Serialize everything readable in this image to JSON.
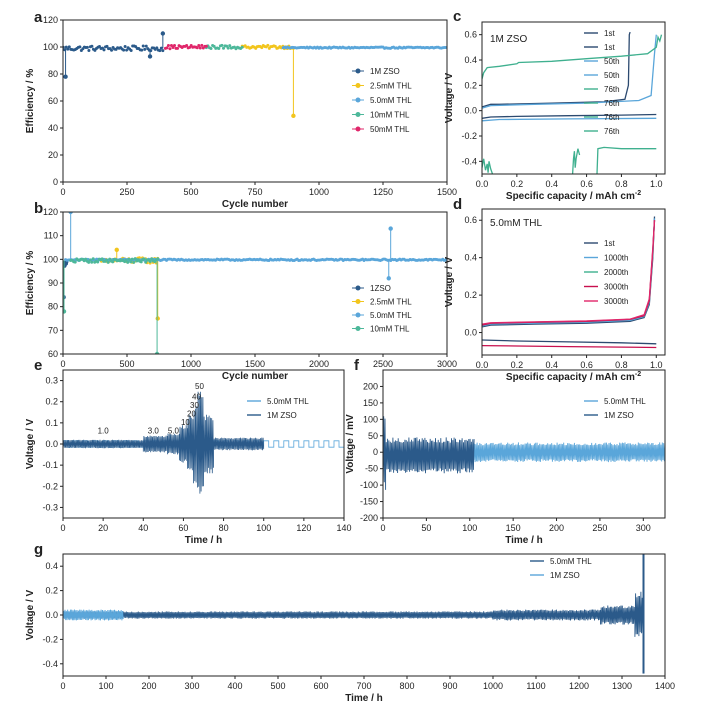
{
  "chart_data": [
    {
      "id": "a",
      "panel_label": "a",
      "type": "scatter",
      "xlabel": "Cycle number",
      "ylabel": "Efficiency / %",
      "xlim": [
        0,
        1500
      ],
      "ylim": [
        0,
        120
      ],
      "xticks": [
        0,
        250,
        500,
        750,
        1000,
        1250,
        1500
      ],
      "yticks": [
        0,
        20,
        40,
        60,
        80,
        100,
        120
      ],
      "legend": "right",
      "series": [
        {
          "name": "1M ZSO",
          "color": "#2b5a8a",
          "x_range": [
            1,
            390
          ],
          "base": 99,
          "noise": 1.8,
          "spikes": [
            [
              10,
              78
            ],
            [
              390,
              110
            ],
            [
              340,
              93
            ]
          ]
        },
        {
          "name": "2.5mM THL",
          "color": "#f2c51d",
          "x_range": [
            700,
            900
          ],
          "base": 100,
          "noise": 1.2,
          "spikes": [
            [
              900,
              49
            ]
          ]
        },
        {
          "name": "5.0mM THL",
          "color": "#5aa6da",
          "x_range": [
            860,
            1495
          ],
          "base": 99.5,
          "noise": 0.5,
          "spikes": []
        },
        {
          "name": "10mM THL",
          "color": "#4db89a",
          "x_range": [
            560,
            700
          ],
          "base": 100,
          "noise": 1.3,
          "spikes": []
        },
        {
          "name": "50mM THL",
          "color": "#e0266a",
          "x_range": [
            400,
            560
          ],
          "base": 100,
          "noise": 1.3,
          "spikes": []
        }
      ]
    },
    {
      "id": "b",
      "panel_label": "b",
      "type": "scatter",
      "xlabel": "Cycle number",
      "ylabel": "Efficiency / %",
      "xlim": [
        0,
        3000
      ],
      "ylim": [
        60,
        120
      ],
      "xticks": [
        0,
        500,
        1000,
        1500,
        2000,
        2500,
        3000
      ],
      "yticks": [
        60,
        70,
        80,
        90,
        100,
        110,
        120
      ],
      "legend": "right",
      "series": [
        {
          "name": "1ZSO",
          "color": "#2b5a8a",
          "x_range": [
            1,
            30
          ],
          "base": 98,
          "noise": 1,
          "spikes": [
            [
              5,
              84
            ]
          ]
        },
        {
          "name": "2.5mM THL",
          "color": "#f2c51d",
          "x_range": [
            300,
            740
          ],
          "base": 99.5,
          "noise": 1.2,
          "spikes": [
            [
              740,
              75
            ],
            [
              420,
              104
            ]
          ]
        },
        {
          "name": "5.0mM THL",
          "color": "#5aa6da",
          "x_range": [
            20,
            2990
          ],
          "base": 99.8,
          "noise": 0.3,
          "spikes": [
            [
              2560,
              113
            ],
            [
              2545,
              92
            ],
            [
              60,
              120
            ]
          ]
        },
        {
          "name": "10mM THL",
          "color": "#4db89a",
          "x_range": [
            60,
            740
          ],
          "base": 99.5,
          "noise": 0.8,
          "spikes": [
            [
              8,
              78
            ],
            [
              735,
              60
            ]
          ]
        }
      ]
    },
    {
      "id": "c",
      "panel_label": "c",
      "type": "line",
      "inset_text": "1M ZSO",
      "xlabel": "Specific capacity / mAh cm",
      "xlabel_sup": "-2",
      "ylabel": "Voltage / V",
      "xlim": [
        0,
        1.05
      ],
      "ylim": [
        -0.5,
        0.7
      ],
      "xticks": [
        0.0,
        0.2,
        0.4,
        0.6,
        0.8,
        1.0
      ],
      "yticks": [
        -0.4,
        -0.2,
        0.0,
        0.2,
        0.4,
        0.6
      ],
      "legend": "top-right",
      "series": [
        {
          "name": "1st",
          "color": "#2c4a70",
          "x": [
            0,
            0.05,
            0.1,
            0.4,
            0.7,
            0.82,
            0.84,
            0.845,
            0.85
          ],
          "y": [
            0.03,
            0.05,
            0.05,
            0.06,
            0.07,
            0.09,
            0.2,
            0.6,
            0.62
          ]
        },
        {
          "name": "1st",
          "color": "#2c4a70",
          "x": [
            0,
            0.05,
            0.2,
            0.5,
            0.8,
            1.0
          ],
          "y": [
            -0.06,
            -0.05,
            -0.045,
            -0.04,
            -0.035,
            -0.03
          ]
        },
        {
          "name": "50th",
          "color": "#5aa6da",
          "x": [
            0,
            0.05,
            0.3,
            0.6,
            0.9,
            0.97,
            0.99,
            1.0
          ],
          "y": [
            0.02,
            0.04,
            0.05,
            0.06,
            0.08,
            0.12,
            0.45,
            0.6
          ]
        },
        {
          "name": "50th",
          "color": "#5aa6da",
          "x": [
            0,
            0.1,
            0.5,
            1.0
          ],
          "y": [
            -0.08,
            -0.07,
            -0.065,
            -0.06
          ]
        },
        {
          "name": "76th",
          "color": "#3fb08f",
          "x": [
            0,
            0.01,
            0.03,
            0.1,
            0.2,
            0.21,
            0.4,
            0.6,
            0.8,
            0.95,
            1.0,
            1.01,
            1.02,
            1.03
          ],
          "y": [
            0.25,
            0.3,
            0.34,
            0.35,
            0.37,
            0.38,
            0.39,
            0.41,
            0.43,
            0.45,
            0.5,
            0.58,
            0.55,
            0.6
          ]
        },
        {
          "name": "76th",
          "color": "#3fb08f",
          "x": [
            0.0,
            0.01,
            0.02,
            0.03,
            0.035,
            0.04,
            0.05,
            0.06
          ],
          "y": [
            -0.45,
            -0.38,
            -0.47,
            -0.42,
            -0.49,
            -0.4,
            -0.46,
            -0.5
          ]
        },
        {
          "name": "76th",
          "color": "#3fb08f",
          "x": [
            0.52,
            0.525,
            0.53,
            0.535,
            0.54,
            0.55,
            0.56
          ],
          "y": [
            -0.5,
            -0.38,
            -0.32,
            -0.45,
            -0.38,
            -0.3,
            -0.35
          ]
        },
        {
          "name": "76th",
          "color": "#3fb08f",
          "x": [
            0.66,
            0.665,
            0.7,
            0.8,
            0.9,
            1.0
          ],
          "y": [
            -0.5,
            -0.3,
            -0.29,
            -0.3,
            -0.3,
            -0.3
          ]
        }
      ]
    },
    {
      "id": "d",
      "panel_label": "d",
      "type": "line",
      "inset_text": "5.0mM THL",
      "xlabel": "Specific capacity / mAh cm",
      "xlabel_sup": "-2",
      "ylabel": "Voltage / V",
      "xlim": [
        0,
        1.05
      ],
      "ylim": [
        -0.12,
        0.66
      ],
      "xticks": [
        0.0,
        0.2,
        0.4,
        0.6,
        0.8,
        1.0
      ],
      "yticks": [
        0.0,
        0.2,
        0.4,
        0.6
      ],
      "legend": "top-right",
      "series": [
        {
          "name": "1st",
          "color": "#2c4a70",
          "x": [
            0,
            0.05,
            0.3,
            0.6,
            0.85,
            0.93,
            0.96,
            0.98,
            0.99
          ],
          "y": [
            0.03,
            0.04,
            0.045,
            0.05,
            0.06,
            0.08,
            0.15,
            0.4,
            0.62
          ]
        },
        {
          "name": "1000th",
          "color": "#5aa6da",
          "x": [
            0,
            0.05,
            0.3,
            0.6,
            0.85,
            0.93,
            0.96,
            0.98,
            0.99
          ],
          "y": [
            0.035,
            0.045,
            0.05,
            0.055,
            0.065,
            0.085,
            0.16,
            0.42,
            0.61
          ]
        },
        {
          "name": "2000th",
          "color": "#3fb08f",
          "x": [
            0,
            0.05,
            0.3,
            0.6,
            0.85,
            0.93,
            0.96,
            0.98,
            0.99
          ],
          "y": [
            0.04,
            0.05,
            0.055,
            0.06,
            0.07,
            0.09,
            0.17,
            0.43,
            0.6
          ]
        },
        {
          "name": "3000th",
          "color": "#c8104e",
          "x": [
            0,
            0.05,
            0.3,
            0.6,
            0.85,
            0.93,
            0.96,
            0.98,
            0.99
          ],
          "y": [
            0.04,
            0.05,
            0.055,
            0.06,
            0.07,
            0.09,
            0.17,
            0.44,
            0.6
          ]
        },
        {
          "name": "3000th",
          "color": "#e0266a",
          "x": [
            0,
            0.05,
            0.3,
            0.6,
            0.85,
            0.93,
            0.96,
            0.98,
            0.99
          ],
          "y": [
            0.045,
            0.052,
            0.057,
            0.062,
            0.072,
            0.095,
            0.18,
            0.45,
            0.6
          ]
        },
        {
          "name": "",
          "color": "#2c4a70",
          "x": [
            0,
            0.2,
            0.5,
            0.8,
            1.0
          ],
          "y": [
            -0.04,
            -0.045,
            -0.05,
            -0.055,
            -0.06
          ]
        },
        {
          "name": "",
          "color": "#c8104e",
          "x": [
            0,
            0.2,
            0.5,
            0.8,
            1.0
          ],
          "y": [
            -0.07,
            -0.072,
            -0.075,
            -0.078,
            -0.08
          ]
        }
      ]
    },
    {
      "id": "e",
      "panel_label": "e",
      "type": "line",
      "xlabel": "Time / h",
      "ylabel": "Voltage / V",
      "xlim": [
        0,
        140
      ],
      "ylim": [
        -0.35,
        0.35
      ],
      "xticks": [
        0,
        20,
        40,
        60,
        80,
        100,
        120,
        140
      ],
      "yticks": [
        -0.3,
        -0.2,
        -0.1,
        0.0,
        0.1,
        0.2,
        0.3
      ],
      "legend": "top-right",
      "annotations": [
        {
          "text": "1.0",
          "x": 20,
          "y": 0.05
        },
        {
          "text": "3.0",
          "x": 45,
          "y": 0.05
        },
        {
          "text": "5.0",
          "x": 55,
          "y": 0.05
        },
        {
          "text": "10",
          "x": 61,
          "y": 0.09
        },
        {
          "text": "20",
          "x": 64,
          "y": 0.13
        },
        {
          "text": "30",
          "x": 65.5,
          "y": 0.17
        },
        {
          "text": "40",
          "x": 66.5,
          "y": 0.21
        },
        {
          "text": "50",
          "x": 68,
          "y": 0.26
        }
      ],
      "series": [
        {
          "name": "5.0mM THL",
          "color": "#5aa6da",
          "mode": "square",
          "segments": [
            [
              0,
              140,
              0.015
            ]
          ]
        },
        {
          "name": "1M ZSO",
          "color": "#2b5a8a",
          "mode": "osc",
          "segments": [
            [
              0,
              40,
              0.02
            ],
            [
              40,
              52,
              0.04
            ],
            [
              52,
              58,
              0.05
            ],
            [
              58,
              62,
              0.09
            ],
            [
              62,
              65,
              0.14
            ],
            [
              65,
              67,
              0.19
            ],
            [
              67,
              70,
              0.25
            ],
            [
              70,
              75,
              0.14
            ],
            [
              75,
              100,
              0.03
            ]
          ]
        }
      ]
    },
    {
      "id": "f",
      "panel_label": "f",
      "type": "line",
      "xlabel": "Time / h",
      "ylabel": "Voltage / mV",
      "xlim": [
        0,
        325
      ],
      "ylim": [
        -200,
        250
      ],
      "xticks": [
        0,
        50,
        100,
        150,
        200,
        250,
        300
      ],
      "yticks": [
        -200,
        -150,
        -100,
        -50,
        0,
        50,
        100,
        150,
        200
      ],
      "legend": "top-right",
      "series": [
        {
          "name": "5.0mM THL",
          "color": "#5aa6da",
          "mode": "band",
          "segments": [
            [
              100,
              325,
              30,
              0
            ]
          ]
        },
        {
          "name": "1M ZSO",
          "color": "#2b5a8a",
          "mode": "band",
          "segments": [
            [
              0,
              3,
              130,
              0
            ],
            [
              3,
              105,
              55,
              -10
            ]
          ]
        }
      ]
    },
    {
      "id": "g",
      "panel_label": "g",
      "type": "line",
      "xlabel": "Time / h",
      "ylabel": "Voltage / V",
      "xlim": [
        0,
        1400
      ],
      "ylim": [
        -0.5,
        0.5
      ],
      "xticks": [
        0,
        100,
        200,
        300,
        400,
        500,
        600,
        700,
        800,
        900,
        1000,
        1100,
        1200,
        1300,
        1400
      ],
      "yticks": [
        -0.4,
        -0.2,
        0.0,
        0.2,
        0.4
      ],
      "legend": "top-right",
      "series": [
        {
          "name": "5.0mM THL",
          "color": "#2b5a8a",
          "mode": "band",
          "segments": [
            [
              0,
              1000,
              0.03,
              0
            ],
            [
              1000,
              1250,
              0.045,
              0
            ],
            [
              1250,
              1330,
              0.08,
              0
            ],
            [
              1330,
              1350,
              0.2,
              0
            ]
          ]
        },
        {
          "name": "1M ZSO",
          "color": "#5aa6da",
          "mode": "band",
          "segments": [
            [
              0,
              140,
              0.045,
              0
            ]
          ]
        }
      ],
      "spikes": [
        {
          "x": 1350,
          "y1": -0.48,
          "y2": 0.5,
          "color": "#2b5a8a"
        }
      ]
    }
  ]
}
